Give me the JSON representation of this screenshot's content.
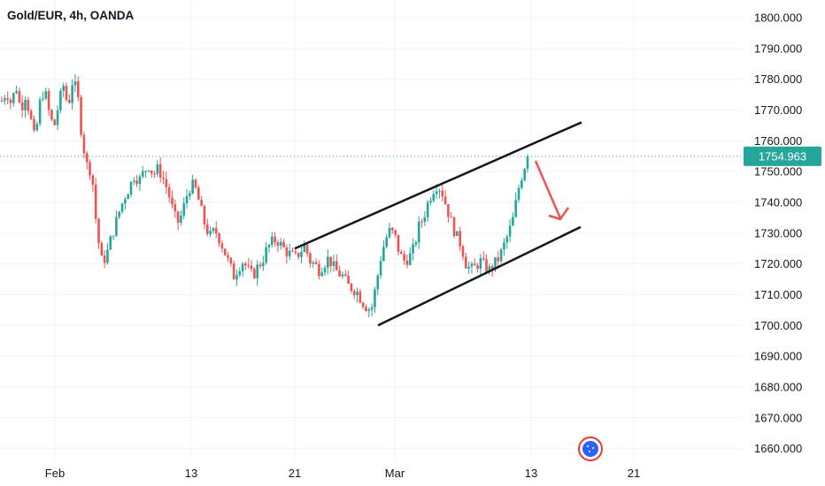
{
  "chart_data": {
    "type": "candlestick",
    "title": "Gold/EUR, 4h, OANDA",
    "ylim": [
      1655,
      1805
    ],
    "y_ticks": [
      "1800.000",
      "1790.000",
      "1780.000",
      "1770.000",
      "1760.000",
      "1750.000",
      "1740.000",
      "1730.000",
      "1720.000",
      "1710.000",
      "1700.000",
      "1690.000",
      "1680.000",
      "1670.000",
      "1660.000"
    ],
    "x_ticks": [
      "Feb",
      "13",
      "21",
      "Mar",
      "13",
      "21"
    ],
    "last_price": "1754.963",
    "last_price_value": 1754.963,
    "colors": {
      "up": "#26a69a",
      "down": "#ef5350",
      "price_line": "#26a69a",
      "trend": "#131722",
      "arrow": "#ef5350",
      "grid": "#f0f3fa"
    },
    "channel": {
      "upper": {
        "from": [
          "21",
          1725
        ],
        "to": [
          "after Mar 13",
          1766
        ]
      },
      "lower": {
        "from": [
          "Mar",
          1700
        ],
        "to": [
          "after Mar 13",
          1732
        ]
      }
    },
    "annotation": {
      "type": "arrow-down",
      "color": "#ef5350"
    },
    "price_path": [
      1773,
      1776,
      1772,
      1778,
      1770,
      1775,
      1768,
      1760,
      1772,
      1777,
      1769,
      1764,
      1772,
      1778,
      1771,
      1780,
      1775,
      1760,
      1752,
      1750,
      1732,
      1721,
      1722,
      1728,
      1733,
      1738,
      1742,
      1745,
      1749,
      1747,
      1750,
      1752,
      1749,
      1751,
      1748,
      1744,
      1738,
      1733,
      1736,
      1742,
      1746,
      1744,
      1738,
      1732,
      1729,
      1731,
      1728,
      1724,
      1720,
      1716,
      1719,
      1721,
      1718,
      1716,
      1719,
      1721,
      1725,
      1727,
      1728,
      1726,
      1724,
      1723,
      1722,
      1724,
      1726,
      1721,
      1720,
      1718,
      1720,
      1722,
      1719,
      1717,
      1716,
      1713,
      1712,
      1711,
      1708,
      1706,
      1705,
      1713,
      1722,
      1728,
      1731,
      1729,
      1723,
      1721,
      1722,
      1725,
      1732,
      1735,
      1740,
      1744,
      1746,
      1743,
      1738,
      1733,
      1729,
      1726,
      1720,
      1718,
      1719,
      1721,
      1719,
      1718,
      1720,
      1722,
      1726,
      1730,
      1735,
      1744,
      1750,
      1755
    ]
  }
}
